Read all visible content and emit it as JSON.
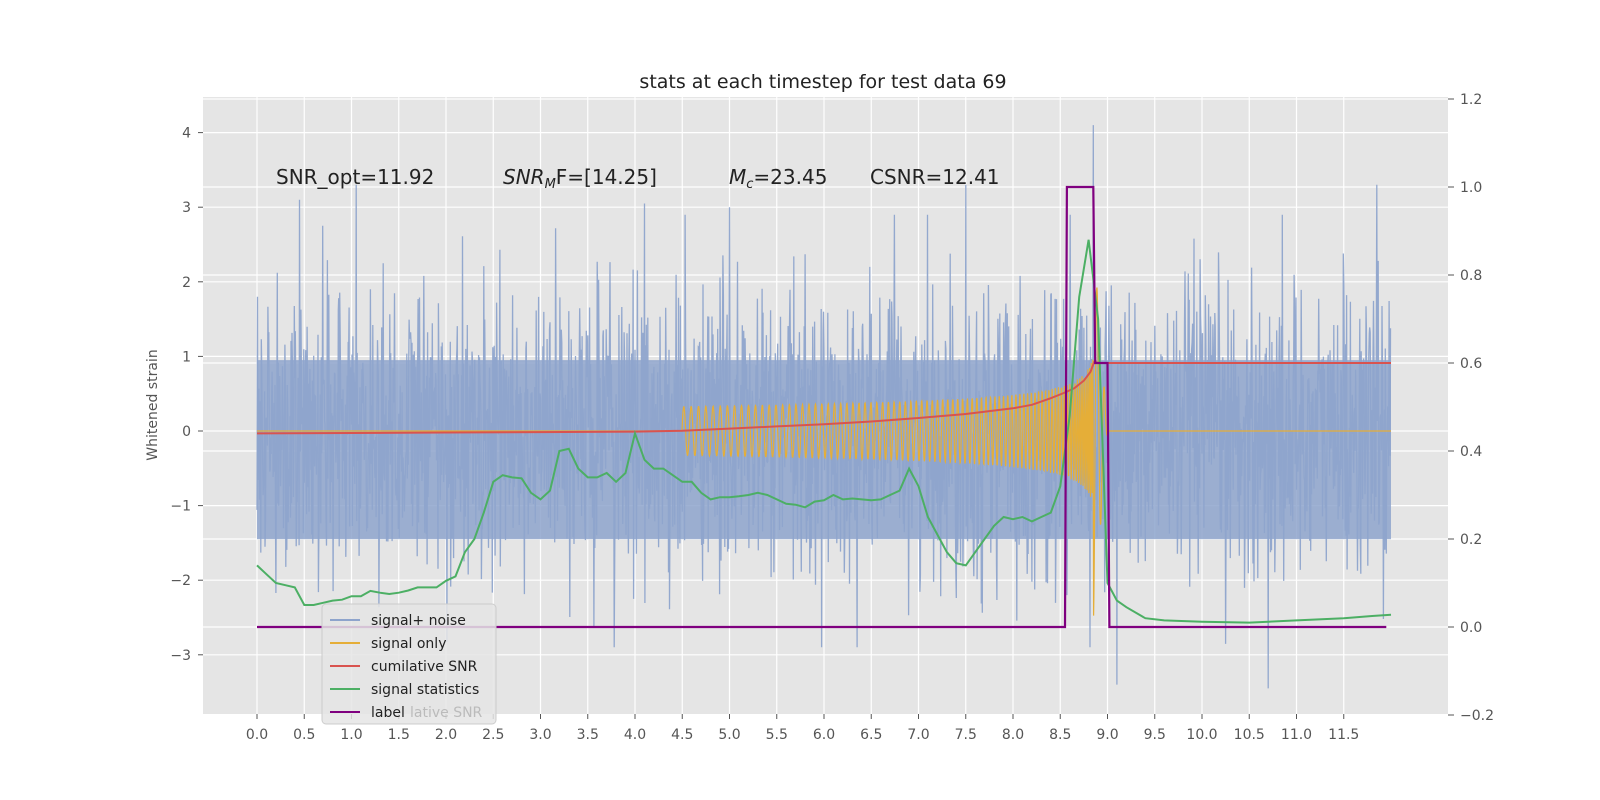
{
  "chart_data": {
    "type": "line",
    "title": "stats at each timestep for test data 69",
    "ylabel": "Whitened strain",
    "xlabel": "",
    "xlim": [
      -0.6,
      12.6
    ],
    "ylim": [
      -3.8,
      4.5
    ],
    "y2lim": [
      -0.2,
      1.2
    ],
    "x_ticks": [
      "0.0",
      "0.5",
      "1.0",
      "1.5",
      "2.0",
      "2.5",
      "3.0",
      "3.5",
      "4.0",
      "4.5",
      "5.0",
      "5.5",
      "6.0",
      "6.5",
      "7.0",
      "7.5",
      "8.0",
      "8.5",
      "9.0",
      "9.5",
      "10.0",
      "10.5",
      "11.0",
      "11.5"
    ],
    "y_ticks": [
      "4",
      "3",
      "2",
      "1",
      "0",
      "−1",
      "−2",
      "−3"
    ],
    "y2_ticks": [
      "1.2",
      "1.0",
      "0.8",
      "0.6",
      "0.4",
      "0.2",
      "0.0",
      "−0.2"
    ],
    "annotations": [
      {
        "text": "SNR_opt=11.92"
      },
      {
        "text": "SNR_MF=[14.25]",
        "prefix": "SNR",
        "sub": "M",
        "suffix": "F=[14.25]"
      },
      {
        "text": "M_c=23.45",
        "prefix": "M",
        "sub": "c",
        "suffix": "=23.45"
      },
      {
        "text": "CSNR=12.41"
      }
    ],
    "series": [
      {
        "name": "signal+ noise",
        "color": "#8ea4cc",
        "axis": "left",
        "description": "whitened noise band, approx. envelope ±2.2 with peaks to ±3",
        "envelope": {
          "x": [
            0,
            12
          ],
          "upper": [
            2.2,
            2.2
          ],
          "lower": [
            -2.2,
            -2.2
          ]
        },
        "peaks": [
          [
            0.45,
            3.1
          ],
          [
            1.05,
            3.3
          ],
          [
            4.1,
            3.05
          ],
          [
            5.0,
            3.0
          ],
          [
            7.5,
            3.3
          ],
          [
            8.85,
            4.1
          ],
          [
            11.85,
            3.3
          ],
          [
            9.1,
            -3.4
          ],
          [
            10.7,
            -3.45
          ],
          [
            6.35,
            -2.9
          ]
        ]
      },
      {
        "name": "signal only",
        "color": "#e5ae38",
        "axis": "left",
        "description": "chirp, amplitude grows toward merger near t=8.85",
        "chirp": {
          "start": 4.5,
          "merger": 8.85,
          "end_amp": 1.0,
          "decay_end": 9.0
        }
      },
      {
        "name": "cumilative SNR",
        "color": "#d9534f",
        "axis": "right",
        "x": [
          0,
          1,
          2,
          3,
          4,
          4.5,
          5,
          5.5,
          6,
          6.5,
          7,
          7.5,
          8,
          8.2,
          8.4,
          8.55,
          8.65,
          8.75,
          8.82,
          8.86,
          8.9,
          9.0,
          12
        ],
        "y": [
          0.44,
          0.441,
          0.442,
          0.443,
          0.444,
          0.446,
          0.451,
          0.456,
          0.461,
          0.467,
          0.475,
          0.484,
          0.497,
          0.505,
          0.52,
          0.533,
          0.543,
          0.56,
          0.58,
          0.603,
          0.6,
          0.6,
          0.6
        ]
      },
      {
        "name": "signal statistics",
        "color": "#4caf64",
        "axis": "right",
        "x": [
          0,
          0.1,
          0.2,
          0.3,
          0.4,
          0.5,
          0.6,
          0.7,
          0.8,
          0.9,
          1.0,
          1.1,
          1.2,
          1.3,
          1.4,
          1.5,
          1.6,
          1.7,
          1.8,
          1.9,
          2.0,
          2.1,
          2.2,
          2.3,
          2.4,
          2.5,
          2.6,
          2.7,
          2.8,
          2.9,
          3.0,
          3.1,
          3.2,
          3.3,
          3.4,
          3.5,
          3.6,
          3.7,
          3.8,
          3.9,
          4.0,
          4.1,
          4.2,
          4.3,
          4.4,
          4.5,
          4.6,
          4.7,
          4.8,
          4.9,
          5.0,
          5.1,
          5.2,
          5.3,
          5.4,
          5.5,
          5.6,
          5.7,
          5.8,
          5.9,
          6.0,
          6.1,
          6.2,
          6.3,
          6.4,
          6.5,
          6.6,
          6.7,
          6.8,
          6.9,
          7.0,
          7.1,
          7.2,
          7.3,
          7.4,
          7.5,
          7.6,
          7.7,
          7.8,
          7.9,
          8.0,
          8.1,
          8.2,
          8.3,
          8.4,
          8.5,
          8.6,
          8.7,
          8.8,
          8.9,
          9.0,
          9.1,
          9.2,
          9.4,
          9.6,
          10.0,
          10.5,
          11.0,
          11.5,
          11.8,
          12.0
        ],
        "y": [
          0.14,
          0.12,
          0.1,
          0.095,
          0.09,
          0.05,
          0.05,
          0.055,
          0.06,
          0.062,
          0.07,
          0.07,
          0.082,
          0.078,
          0.075,
          0.078,
          0.083,
          0.09,
          0.09,
          0.09,
          0.105,
          0.115,
          0.17,
          0.2,
          0.26,
          0.33,
          0.345,
          0.34,
          0.338,
          0.305,
          0.29,
          0.31,
          0.4,
          0.405,
          0.36,
          0.34,
          0.34,
          0.35,
          0.33,
          0.35,
          0.44,
          0.38,
          0.36,
          0.36,
          0.345,
          0.33,
          0.33,
          0.305,
          0.29,
          0.295,
          0.295,
          0.297,
          0.3,
          0.305,
          0.3,
          0.29,
          0.28,
          0.278,
          0.272,
          0.285,
          0.288,
          0.3,
          0.29,
          0.292,
          0.29,
          0.288,
          0.29,
          0.3,
          0.31,
          0.36,
          0.32,
          0.25,
          0.21,
          0.17,
          0.145,
          0.14,
          0.17,
          0.2,
          0.23,
          0.25,
          0.245,
          0.25,
          0.24,
          0.25,
          0.26,
          0.32,
          0.48,
          0.75,
          0.88,
          0.7,
          0.1,
          0.06,
          0.045,
          0.02,
          0.015,
          0.012,
          0.01,
          0.015,
          0.02,
          0.025,
          0.028
        ]
      },
      {
        "name": "label",
        "color": "#7f007f",
        "axis": "right",
        "x": [
          0,
          8.55,
          8.57,
          8.85,
          8.87,
          9.0,
          9.02,
          11.95
        ],
        "y": [
          0,
          0,
          1,
          1,
          0.6,
          0.6,
          0,
          0
        ]
      }
    ],
    "legend": {
      "placement": "lower-left",
      "ghost_text": "lative SNR"
    },
    "grid": true
  }
}
